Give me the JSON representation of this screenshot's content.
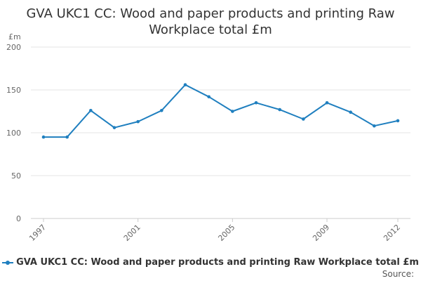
{
  "title_line1": "GVA UKC1 CC: Wood and paper products and printing Raw",
  "title_line2": "Workplace total £m",
  "source_label": "Source:",
  "colors": {
    "series": "#1f7fbf",
    "grid": "#e6e6e6",
    "axis_text": "#666666"
  },
  "chart_data": {
    "type": "line",
    "title": "GVA UKC1 CC: Wood and paper products and printing Raw Workplace total £m",
    "ylabel": "£m",
    "xlabel": "",
    "ylim": [
      0,
      200
    ],
    "y_ticks": [
      0,
      50,
      100,
      150,
      200
    ],
    "x_ticks": [
      1997,
      2001,
      2005,
      2009,
      2012
    ],
    "grid": true,
    "legend": "bottom",
    "series": [
      {
        "name": "GVA UKC1 CC: Wood and paper products and printing Raw Workplace total £m",
        "x": [
          1997,
          1998,
          1999,
          2000,
          2001,
          2002,
          2003,
          2004,
          2005,
          2006,
          2007,
          2008,
          2009,
          2010,
          2011,
          2012
        ],
        "y": [
          95,
          95,
          126,
          106,
          113,
          126,
          156,
          142,
          125,
          135,
          127,
          116,
          135,
          124,
          108,
          114
        ]
      }
    ]
  }
}
